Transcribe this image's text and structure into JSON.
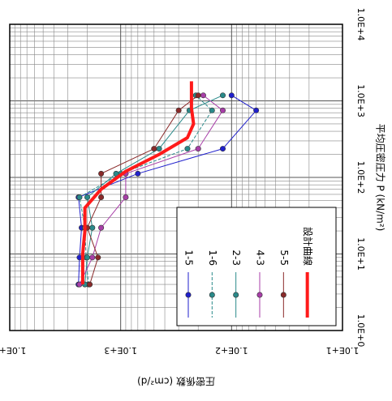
{
  "chart_data": {
    "type": "line",
    "orientation": "rotated-90-clockwise",
    "x_axis": {
      "label": "平均圧密圧力 P (kN/m²)",
      "scale": "log",
      "range": [
        1.0,
        10000.0
      ],
      "ticks": [
        "1.0E+0",
        "1.0E+1",
        "1.0E+2",
        "1.0E+3",
        "1.0E+4"
      ]
    },
    "y_axis": {
      "label": "圧密係数 (cm²/d)",
      "scale": "log",
      "range": [
        10.0,
        10000.0
      ],
      "ticks": [
        "1.0E+1",
        "1.0E+2",
        "1.0E+3",
        "1.0E+4"
      ]
    },
    "grid": true,
    "legend": {
      "position": "bottom-right",
      "title": "設計曲線"
    },
    "series": [
      {
        "name": "1-5",
        "color": "#1f1fcc",
        "marker": "circle",
        "dash": "none",
        "points": [
          [
            4,
            2400
          ],
          [
            9,
            2350
          ],
          [
            22,
            2250
          ],
          [
            55,
            2400
          ],
          [
            112,
            700
          ],
          [
            237,
            120
          ],
          [
            750,
            60
          ],
          [
            1180,
            100
          ]
        ]
      },
      {
        "name": "1-6",
        "color": "#2a8a8a",
        "marker": "circle",
        "dash": "4,2",
        "points": [
          [
            4,
            1950
          ],
          [
            9,
            2050
          ],
          [
            22,
            2100
          ],
          [
            55,
            2350
          ],
          [
            112,
            1000
          ],
          [
            237,
            250
          ],
          [
            750,
            150
          ],
          [
            1180,
            210
          ]
        ]
      },
      {
        "name": "2-3",
        "color": "#2a8a8a",
        "marker": "circle",
        "dash": "none",
        "points": [
          [
            4,
            2100
          ],
          [
            9,
            2000
          ],
          [
            22,
            1800
          ],
          [
            55,
            2000
          ],
          [
            112,
            1100
          ],
          [
            237,
            450
          ],
          [
            750,
            240
          ],
          [
            1180,
            120
          ]
        ]
      },
      {
        "name": "4-3",
        "color": "#a83ea8",
        "marker": "circle",
        "dash": "none",
        "points": [
          [
            4,
            2350
          ],
          [
            9,
            1800
          ],
          [
            22,
            1500
          ],
          [
            55,
            900
          ],
          [
            112,
            900
          ],
          [
            237,
            200
          ],
          [
            750,
            120
          ],
          [
            1180,
            180
          ]
        ]
      },
      {
        "name": "5-5",
        "color": "#8a2a2a",
        "marker": "circle",
        "dash": "none",
        "points": [
          [
            4,
            1900
          ],
          [
            9,
            1600
          ],
          [
            22,
            2000
          ],
          [
            55,
            1500
          ],
          [
            112,
            1500
          ],
          [
            237,
            500
          ],
          [
            750,
            300
          ],
          [
            1180,
            200
          ]
        ]
      },
      {
        "name": "設計曲線",
        "color": "#ff1a1a",
        "marker": "none",
        "dash": "none",
        "width": 4,
        "points": [
          [
            4,
            2200
          ],
          [
            10,
            2200
          ],
          [
            20,
            2100
          ],
          [
            40,
            2100
          ],
          [
            70,
            1500
          ],
          [
            120,
            900
          ],
          [
            200,
            450
          ],
          [
            330,
            250
          ],
          [
            500,
            220
          ],
          [
            800,
            230
          ],
          [
            1800,
            230
          ]
        ]
      }
    ]
  }
}
